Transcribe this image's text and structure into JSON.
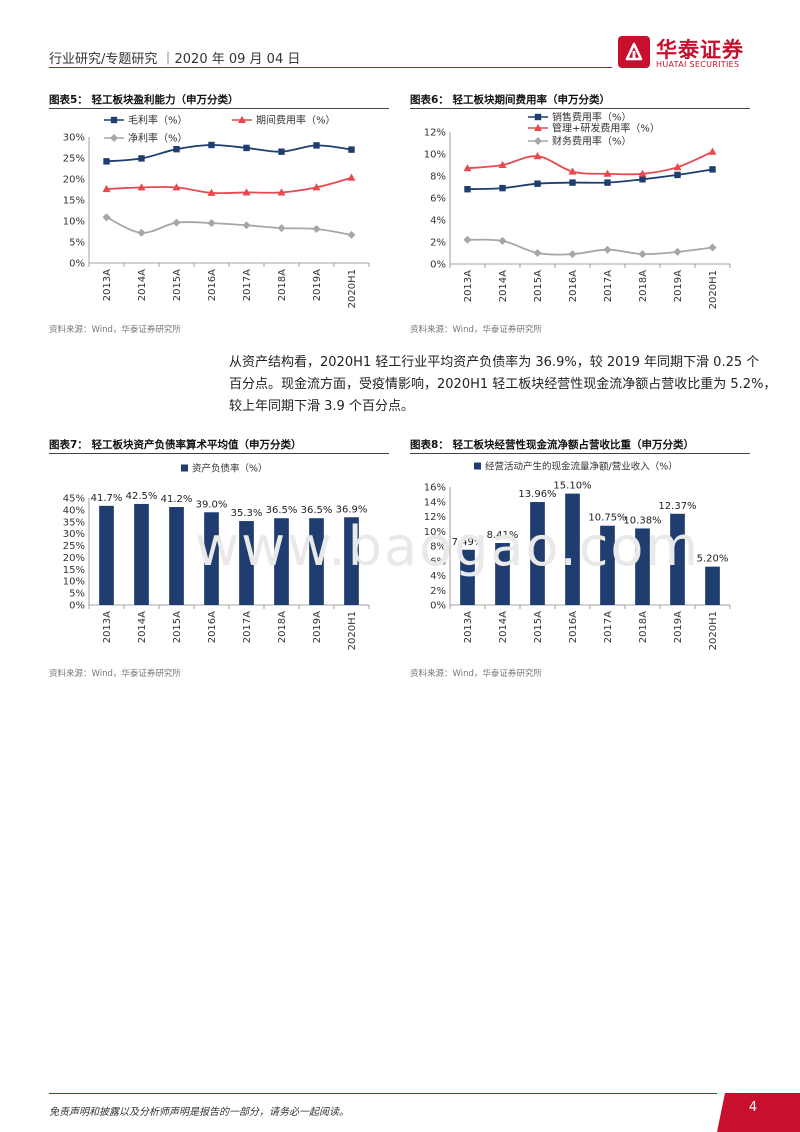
{
  "header": {
    "text": "行业研究/专题研究 ｜2020 年 09 月 04 日",
    "logo_cn": "华泰证券",
    "logo_en": "HUATAI SECURITIES"
  },
  "source_note": "资料来源：Wind，华泰证券研究所",
  "paragraph": [
    "从资产结构看，2020H1 轻工行业平均资产负债率为 36.9%，较 2019 年同期下滑 0.25 个",
    "百分点。现金流方面，受疫情影响，2020H1 轻工板块经营性现金流净额占营收比重为 5.2%，",
    "较上年同期下滑 3.9 个百分点。"
  ],
  "watermark": "www.baogao.com",
  "footer": {
    "disclaimer": "免责声明和披露以及分析师声明是报告的一部分，请务必一起阅读。",
    "page": "4"
  },
  "colors": {
    "navy": "#1f3d6e",
    "red": "#e8494f",
    "gray": "#a6a6a6",
    "brand": "#c8102e"
  },
  "chart_data": [
    {
      "id": "fig5",
      "title": "图表5：  轻工板块盈利能力（申万分类）",
      "type": "line",
      "categories": [
        "2013A",
        "2014A",
        "2015A",
        "2016A",
        "2017A",
        "2018A",
        "2019A",
        "2020H1"
      ],
      "ylim": [
        0,
        30
      ],
      "yticks": [
        "0%",
        "5%",
        "10%",
        "15%",
        "20%",
        "25%",
        "30%"
      ],
      "series": [
        {
          "name": "毛利率（%）",
          "color": "#1f3d6e",
          "marker": "square",
          "values": [
            24.2,
            24.9,
            27.1,
            28.1,
            27.4,
            26.5,
            28.0,
            27.0
          ]
        },
        {
          "name": "期间费用率（%）",
          "color": "#e8494f",
          "marker": "triangle",
          "values": [
            17.6,
            18.0,
            18.0,
            16.7,
            16.8,
            16.8,
            18.0,
            20.3
          ]
        },
        {
          "name": "净利率（%）",
          "color": "#a6a6a6",
          "marker": "diamond",
          "values": [
            10.9,
            7.2,
            9.6,
            9.5,
            9.0,
            8.3,
            8.1,
            6.7
          ]
        }
      ]
    },
    {
      "id": "fig6",
      "title": "图表6：  轻工板块期间费用率（申万分类）",
      "type": "line",
      "categories": [
        "2013A",
        "2014A",
        "2015A",
        "2016A",
        "2017A",
        "2018A",
        "2019A",
        "2020H1"
      ],
      "ylim": [
        0,
        12
      ],
      "yticks": [
        "0%",
        "2%",
        "4%",
        "6%",
        "8%",
        "10%",
        "12%"
      ],
      "series": [
        {
          "name": "销售费用率（%）",
          "color": "#1f3d6e",
          "marker": "square",
          "values": [
            6.8,
            6.9,
            7.3,
            7.4,
            7.4,
            7.7,
            8.1,
            8.6
          ]
        },
        {
          "name": "管理+研发费用率（%）",
          "color": "#e8494f",
          "marker": "triangle",
          "values": [
            8.7,
            9.0,
            9.8,
            8.4,
            8.2,
            8.2,
            8.8,
            10.2
          ]
        },
        {
          "name": "财务费用率（%）",
          "color": "#a6a6a6",
          "marker": "diamond",
          "values": [
            2.2,
            2.1,
            1.0,
            0.9,
            1.3,
            0.9,
            1.1,
            1.5
          ]
        }
      ]
    },
    {
      "id": "fig7",
      "title": "图表7：  轻工板块资产负债率算术平均值（申万分类）",
      "type": "bar",
      "categories": [
        "2013A",
        "2014A",
        "2015A",
        "2016A",
        "2017A",
        "2018A",
        "2019A",
        "2020H1"
      ],
      "ylim": [
        0,
        45
      ],
      "yticks": [
        "0%",
        "5%",
        "10%",
        "15%",
        "20%",
        "25%",
        "30%",
        "35%",
        "40%",
        "45%"
      ],
      "series": [
        {
          "name": "资产负债率（%）",
          "color": "#1f3d6e",
          "values": [
            41.7,
            42.5,
            41.2,
            39.0,
            35.3,
            36.5,
            36.5,
            36.9
          ],
          "labels": [
            "41.7%",
            "42.5%",
            "41.2%",
            "39.0%",
            "35.3%",
            "36.5%",
            "36.5%",
            "36.9%"
          ]
        }
      ]
    },
    {
      "id": "fig8",
      "title": "图表8：  轻工板块经营性现金流净额占营收比重（申万分类）",
      "type": "bar",
      "categories": [
        "2013A",
        "2014A",
        "2015A",
        "2016A",
        "2017A",
        "2018A",
        "2019A",
        "2020H1"
      ],
      "ylim": [
        0,
        16
      ],
      "yticks": [
        "0%",
        "2%",
        "4%",
        "6%",
        "8%",
        "10%",
        "12%",
        "14%",
        "16%"
      ],
      "series": [
        {
          "name": "经营活动产生的现金流量净额/营业收入（%）",
          "color": "#1f3d6e",
          "values": [
            7.49,
            8.41,
            13.96,
            15.1,
            10.75,
            10.38,
            12.37,
            5.2
          ],
          "labels": [
            "7.49%",
            "8.41%",
            "13.96%",
            "15.10%",
            "10.75%",
            "10.38%",
            "12.37%",
            "5.20%"
          ]
        }
      ]
    }
  ]
}
